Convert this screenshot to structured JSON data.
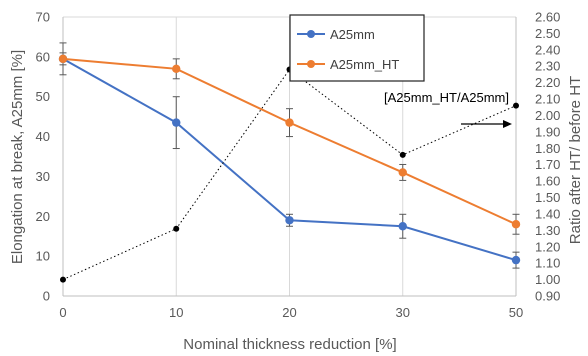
{
  "chart_data": {
    "type": "line",
    "xlabel": "Nominal thickness reduction [%]",
    "ylabel_left": "Elongation at break, A25mm [%]",
    "ylabel_right": "Ratio after HT/ before HT",
    "x": [
      0,
      10,
      20,
      30,
      50
    ],
    "xlim": [
      0,
      50
    ],
    "ylim_left": [
      0,
      70
    ],
    "ylim_right": [
      0.9,
      2.6
    ],
    "xticks": [
      "0",
      "10",
      "20",
      "30",
      "50"
    ],
    "yticks_left": [
      "0",
      "10",
      "20",
      "30",
      "40",
      "50",
      "60",
      "70"
    ],
    "yticks_right": [
      "0.90",
      "1.00",
      "1.10",
      "1.20",
      "1.30",
      "1.40",
      "1.50",
      "1.60",
      "1.70",
      "1.80",
      "1.90",
      "2.00",
      "2.10",
      "2.20",
      "2.30",
      "2.40",
      "2.50",
      "2.60"
    ],
    "grid": "vertical",
    "legend_position": "top-center",
    "series": [
      {
        "name": "A25mm",
        "axis": "left",
        "color": "#4472C4",
        "values": [
          59.5,
          43.5,
          19.0,
          17.5,
          9.0
        ],
        "errors": [
          4.0,
          6.5,
          1.5,
          3.0,
          2.0
        ]
      },
      {
        "name": "A25mm_HT",
        "axis": "left",
        "color": "#ED7D31",
        "values": [
          59.5,
          57.0,
          43.5,
          31.0,
          18.0
        ],
        "errors": [
          1.5,
          2.5,
          3.5,
          2.0,
          2.5
        ]
      },
      {
        "name": "[A25mm_HT/A25mm]",
        "axis": "right",
        "color": "#000000",
        "style": "dotted",
        "values": [
          1.0,
          1.31,
          2.28,
          1.76,
          2.06
        ]
      }
    ],
    "annotation": "[A25mm_HT/A25mm]"
  }
}
